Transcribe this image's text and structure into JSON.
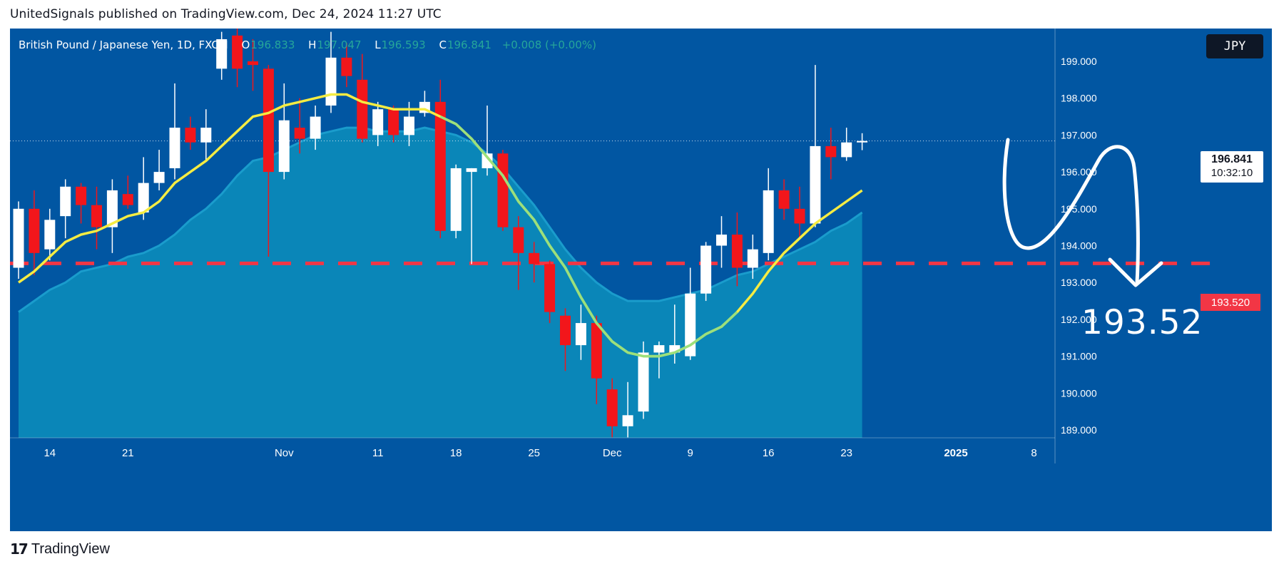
{
  "header": {
    "publish_line": "UnitedSignals published on TradingView.com, Dec 24, 2024 11:27 UTC"
  },
  "symbol": {
    "name": "British Pound / Japanese Yen, 1D, FXCM",
    "open_label": "O",
    "open": "196.833",
    "high_label": "H",
    "high": "197.047",
    "low_label": "L",
    "low": "196.593",
    "close_label": "C",
    "close": "196.841",
    "change": "+0.008 (+0.00%)"
  },
  "currency": "JPY",
  "price_tag": {
    "value": "196.841",
    "countdown": "10:32:10"
  },
  "target_tag": "193.520",
  "target_label": "193.52",
  "footer": {
    "logo_mark": "17",
    "brand": "TradingView"
  },
  "colors": {
    "background": "#0156a2",
    "up_candle": "#ffffff",
    "down_candle": "#f2161b",
    "ma_fast": "#f5ec42",
    "ma_band": "#0a86b8",
    "target_line": "#f23645",
    "price_line": "#ffffff"
  },
  "chart_data": {
    "type": "candlestick",
    "instrument": "British Pound / Japanese Yen, 1D, FXCM",
    "ylim": [
      188.75,
      200.0
    ],
    "y_ticks": [
      "199.000",
      "198.000",
      "197.000",
      "196.000",
      "195.000",
      "194.000",
      "193.000",
      "192.000",
      "191.000",
      "190.000",
      "189.000"
    ],
    "x_ticks": [
      "14",
      "21",
      "Nov",
      "11",
      "18",
      "25",
      "Dec",
      "9",
      "16",
      "23",
      "2025",
      "8"
    ],
    "x_tick_bar_index": [
      2,
      7,
      17,
      23,
      28,
      33,
      38,
      43,
      48,
      53,
      60,
      65
    ],
    "current_price": 196.841,
    "target_level": 193.52,
    "candles": [
      {
        "o": 193.4,
        "h": 195.2,
        "l": 193.1,
        "c": 195.0
      },
      {
        "o": 195.0,
        "h": 195.5,
        "l": 193.2,
        "c": 193.8
      },
      {
        "o": 193.9,
        "h": 195.0,
        "l": 193.6,
        "c": 194.7
      },
      {
        "o": 194.8,
        "h": 195.8,
        "l": 194.2,
        "c": 195.6
      },
      {
        "o": 195.6,
        "h": 195.7,
        "l": 194.6,
        "c": 195.1
      },
      {
        "o": 195.1,
        "h": 195.6,
        "l": 193.9,
        "c": 194.5
      },
      {
        "o": 194.5,
        "h": 195.8,
        "l": 193.8,
        "c": 195.5
      },
      {
        "o": 195.4,
        "h": 195.9,
        "l": 195.0,
        "c": 195.1
      },
      {
        "o": 194.9,
        "h": 196.4,
        "l": 194.7,
        "c": 195.7
      },
      {
        "o": 195.7,
        "h": 196.6,
        "l": 195.5,
        "c": 196.0
      },
      {
        "o": 196.1,
        "h": 198.4,
        "l": 195.8,
        "c": 197.2
      },
      {
        "o": 197.2,
        "h": 197.5,
        "l": 196.6,
        "c": 196.8
      },
      {
        "o": 196.8,
        "h": 197.7,
        "l": 196.3,
        "c": 197.2
      },
      {
        "o": 198.8,
        "h": 199.8,
        "l": 198.5,
        "c": 199.6
      },
      {
        "o": 199.7,
        "h": 200.0,
        "l": 198.3,
        "c": 198.8
      },
      {
        "o": 199.0,
        "h": 199.6,
        "l": 198.2,
        "c": 198.9
      },
      {
        "o": 198.8,
        "h": 198.9,
        "l": 193.7,
        "c": 196.0
      },
      {
        "o": 196.0,
        "h": 198.4,
        "l": 195.8,
        "c": 197.4
      },
      {
        "o": 197.2,
        "h": 198.0,
        "l": 196.5,
        "c": 196.9
      },
      {
        "o": 196.9,
        "h": 197.8,
        "l": 196.6,
        "c": 197.5
      },
      {
        "o": 197.8,
        "h": 199.8,
        "l": 197.6,
        "c": 199.1
      },
      {
        "o": 199.1,
        "h": 199.5,
        "l": 198.3,
        "c": 198.6
      },
      {
        "o": 198.5,
        "h": 199.2,
        "l": 196.8,
        "c": 196.9
      },
      {
        "o": 197.0,
        "h": 197.9,
        "l": 196.7,
        "c": 197.7
      },
      {
        "o": 197.7,
        "h": 197.8,
        "l": 196.8,
        "c": 197.0
      },
      {
        "o": 197.0,
        "h": 197.9,
        "l": 196.7,
        "c": 197.5
      },
      {
        "o": 197.6,
        "h": 198.2,
        "l": 197.5,
        "c": 197.9
      },
      {
        "o": 197.9,
        "h": 198.5,
        "l": 194.2,
        "c": 194.4
      },
      {
        "o": 194.4,
        "h": 196.2,
        "l": 194.2,
        "c": 196.1
      },
      {
        "o": 196.0,
        "h": 196.1,
        "l": 193.5,
        "c": 196.1
      },
      {
        "o": 196.1,
        "h": 197.8,
        "l": 195.9,
        "c": 196.5
      },
      {
        "o": 196.5,
        "h": 196.6,
        "l": 194.4,
        "c": 194.5
      },
      {
        "o": 194.5,
        "h": 194.8,
        "l": 192.8,
        "c": 193.8
      },
      {
        "o": 193.8,
        "h": 194.1,
        "l": 193.0,
        "c": 193.5
      },
      {
        "o": 193.5,
        "h": 193.6,
        "l": 191.9,
        "c": 192.2
      },
      {
        "o": 192.1,
        "h": 192.3,
        "l": 190.6,
        "c": 191.3
      },
      {
        "o": 191.3,
        "h": 192.4,
        "l": 190.9,
        "c": 191.9
      },
      {
        "o": 191.9,
        "h": 192.1,
        "l": 189.7,
        "c": 190.4
      },
      {
        "o": 190.1,
        "h": 190.4,
        "l": 188.8,
        "c": 189.1
      },
      {
        "o": 189.1,
        "h": 190.3,
        "l": 188.8,
        "c": 189.4
      },
      {
        "o": 189.5,
        "h": 191.4,
        "l": 189.3,
        "c": 191.1
      },
      {
        "o": 191.1,
        "h": 191.4,
        "l": 190.4,
        "c": 191.3
      },
      {
        "o": 191.1,
        "h": 192.4,
        "l": 190.8,
        "c": 191.3
      },
      {
        "o": 191.0,
        "h": 193.4,
        "l": 190.9,
        "c": 192.7
      },
      {
        "o": 192.7,
        "h": 194.1,
        "l": 192.5,
        "c": 194.0
      },
      {
        "o": 194.0,
        "h": 194.8,
        "l": 193.4,
        "c": 194.3
      },
      {
        "o": 194.3,
        "h": 194.9,
        "l": 192.9,
        "c": 193.4
      },
      {
        "o": 193.4,
        "h": 194.3,
        "l": 193.1,
        "c": 193.9
      },
      {
        "o": 193.8,
        "h": 196.1,
        "l": 193.6,
        "c": 195.5
      },
      {
        "o": 195.5,
        "h": 195.8,
        "l": 194.7,
        "c": 195.0
      },
      {
        "o": 195.0,
        "h": 195.6,
        "l": 194.2,
        "c": 194.6
      },
      {
        "o": 194.6,
        "h": 198.9,
        "l": 194.5,
        "c": 196.7
      },
      {
        "o": 196.7,
        "h": 197.2,
        "l": 195.8,
        "c": 196.4
      },
      {
        "o": 196.4,
        "h": 197.2,
        "l": 196.3,
        "c": 196.8
      },
      {
        "o": 196.8,
        "h": 197.05,
        "l": 196.59,
        "c": 196.84
      }
    ],
    "ma_fast": [
      193.0,
      193.3,
      193.7,
      194.1,
      194.3,
      194.4,
      194.6,
      194.8,
      194.9,
      195.2,
      195.7,
      196.0,
      196.3,
      196.7,
      197.1,
      197.5,
      197.6,
      197.8,
      197.9,
      198.0,
      198.1,
      198.1,
      197.9,
      197.8,
      197.7,
      197.7,
      197.7,
      197.5,
      197.3,
      196.9,
      196.4,
      195.9,
      195.2,
      194.7,
      194.0,
      193.4,
      192.6,
      191.9,
      191.4,
      191.1,
      191.0,
      191.0,
      191.1,
      191.3,
      191.6,
      191.8,
      192.2,
      192.7,
      193.3,
      193.8,
      194.2,
      194.6,
      194.9,
      195.2,
      195.5
    ],
    "ma_band": [
      192.2,
      192.5,
      192.8,
      193.0,
      193.3,
      193.4,
      193.5,
      193.7,
      193.8,
      194.0,
      194.3,
      194.7,
      195.0,
      195.4,
      195.9,
      196.3,
      196.4,
      196.6,
      196.8,
      197.0,
      197.1,
      197.2,
      197.2,
      197.1,
      197.1,
      197.1,
      197.2,
      197.1,
      197.0,
      196.8,
      196.5,
      196.1,
      195.6,
      195.1,
      194.5,
      193.9,
      193.4,
      193.0,
      192.7,
      192.5,
      192.5,
      192.5,
      192.6,
      192.7,
      192.8,
      193.0,
      193.2,
      193.3,
      193.5,
      193.7,
      193.9,
      194.1,
      194.4,
      194.6,
      194.9
    ]
  }
}
